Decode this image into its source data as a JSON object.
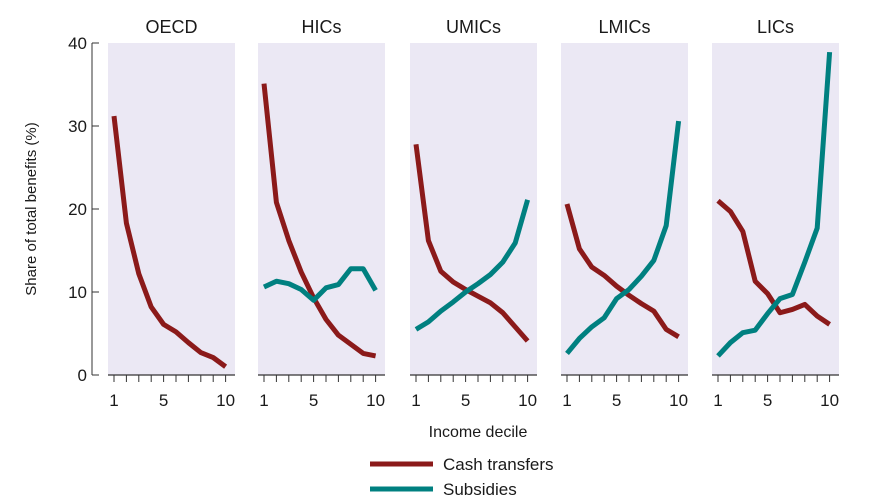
{
  "chart_data": {
    "type": "line",
    "ylabel": "Share of total benefits (%)",
    "xlabel": "Income decile",
    "ylim": [
      0,
      40
    ],
    "y_ticks": [
      0,
      10,
      20,
      30,
      40
    ],
    "x_ticks": [
      1,
      5,
      10
    ],
    "x": [
      1,
      2,
      3,
      4,
      5,
      6,
      7,
      8,
      9,
      10
    ],
    "colors": {
      "cash_transfers": "#8b1a1a",
      "subsidies": "#008080",
      "panel_bg": "#ebe8f4"
    },
    "legend": [
      {
        "key": "cash_transfers",
        "label": "Cash transfers"
      },
      {
        "key": "subsidies",
        "label": "Subsidies"
      }
    ],
    "panels": [
      {
        "title": "OECD",
        "series": [
          {
            "key": "cash_transfers",
            "values": [
              31.2,
              18.3,
              12.2,
              8.2,
              6.1,
              5.2,
              3.9,
              2.7,
              2.1,
              1.0
            ]
          }
        ]
      },
      {
        "title": "HICs",
        "series": [
          {
            "key": "cash_transfers",
            "values": [
              35.1,
              20.8,
              16.2,
              12.4,
              9.3,
              6.7,
              4.8,
              3.7,
              2.6,
              2.3
            ]
          },
          {
            "key": "subsidies",
            "values": [
              10.6,
              11.3,
              11.0,
              10.3,
              9.0,
              10.5,
              10.9,
              12.8,
              12.8,
              10.2
            ]
          }
        ]
      },
      {
        "title": "UMICs",
        "series": [
          {
            "key": "cash_transfers",
            "values": [
              27.8,
              16.2,
              12.5,
              11.2,
              10.3,
              9.5,
              8.7,
              7.5,
              5.8,
              4.1
            ]
          },
          {
            "key": "subsidies",
            "values": [
              5.5,
              6.4,
              7.7,
              8.8,
              10.0,
              11.0,
              12.1,
              13.6,
              15.9,
              21.1
            ]
          }
        ]
      },
      {
        "title": "LMICs",
        "series": [
          {
            "key": "cash_transfers",
            "values": [
              20.6,
              15.2,
              13.0,
              12.0,
              10.7,
              9.6,
              8.6,
              7.7,
              5.5,
              4.6
            ]
          },
          {
            "key": "subsidies",
            "values": [
              2.6,
              4.4,
              5.8,
              6.9,
              9.2,
              10.3,
              11.9,
              13.8,
              18.0,
              30.6
            ]
          }
        ]
      },
      {
        "title": "LICs",
        "series": [
          {
            "key": "cash_transfers",
            "values": [
              21.0,
              19.7,
              17.3,
              11.3,
              9.8,
              7.5,
              7.9,
              8.5,
              7.1,
              6.1
            ]
          },
          {
            "key": "subsidies",
            "values": [
              2.3,
              3.9,
              5.1,
              5.4,
              7.4,
              9.2,
              9.7,
              13.6,
              17.7,
              38.9
            ]
          }
        ]
      }
    ]
  }
}
